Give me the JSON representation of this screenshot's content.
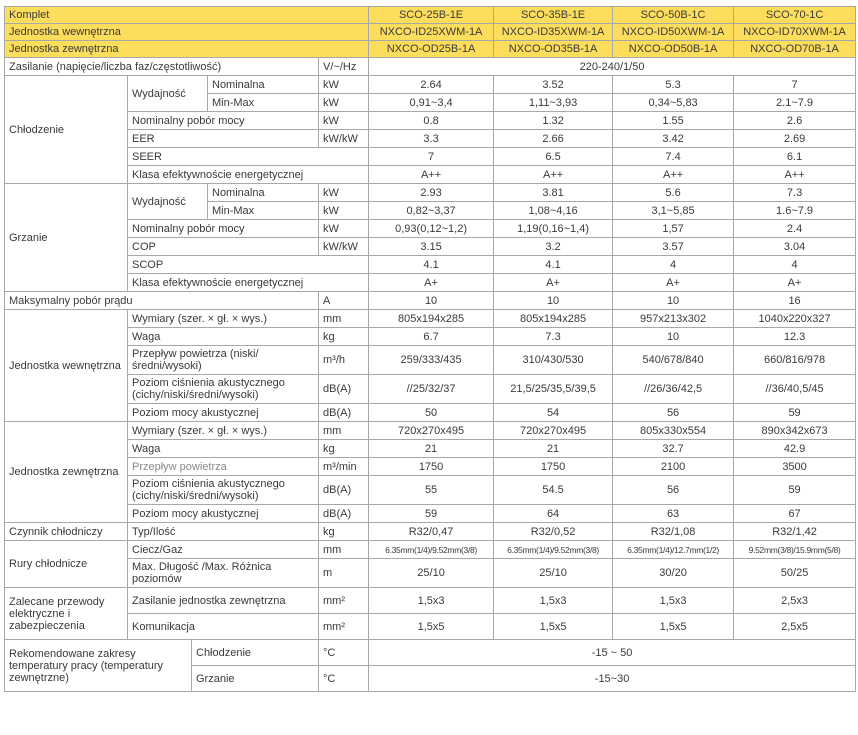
{
  "header": [
    {
      "label": "Komplet",
      "values": [
        "SCO-25B-1E",
        "SCO-35B-1E",
        "SCO-50B-1C",
        "SCO-70-1C"
      ]
    },
    {
      "label": "Jednostka wewnętrzna",
      "values": [
        "NXCO-ID25XWM-1A",
        "NXCO-ID35XWM-1A",
        "NXCO-ID50XWM-1A",
        "NXCO-ID70XWM-1A"
      ]
    },
    {
      "label": "Jednostka zewnętrzna",
      "values": [
        "NXCO-OD25B-1A",
        "NXCO-OD35B-1A",
        "NXCO-OD50B-1A",
        "NXCO-OD70B-1A"
      ]
    }
  ],
  "sections": [
    {
      "label": null,
      "rows": [
        {
          "label": "Zasilanie (napięcie/liczba faz/częstotliwość)",
          "unit": "V/~/Hz",
          "value": "220-240/1/50"
        }
      ]
    },
    {
      "label": "Chłodzenie",
      "rows": [
        {
          "group": "Wydajność",
          "label": "Nominalna",
          "unit": "kW",
          "values": [
            "2.64",
            "3.52",
            "5.3",
            "7"
          ]
        },
        {
          "group": "Wydajność",
          "label": "Min-Max",
          "unit": "kW",
          "values": [
            "0,91~3,4",
            "1,11~3,93",
            "0,34~5,83",
            "2.1~7.9"
          ]
        },
        {
          "label": "Nominalny pobór mocy",
          "unit": "kW",
          "values": [
            "0.8",
            "1.32",
            "1.55",
            "2.6"
          ]
        },
        {
          "label": "EER",
          "unit": "kW/kW",
          "values": [
            "3.3",
            "2.66",
            "3.42",
            "2.69"
          ]
        },
        {
          "label": "SEER",
          "unit": null,
          "values": [
            "7",
            "6.5",
            "7.4",
            "6.1"
          ]
        },
        {
          "label": "Klasa efektywnoście energetycznej",
          "unit": null,
          "values": [
            "A++",
            "A++",
            "A++",
            "A++"
          ]
        }
      ]
    },
    {
      "label": "Grzanie",
      "rows": [
        {
          "group": "Wydajność",
          "label": "Nominalna",
          "unit": "kW",
          "values": [
            "2.93",
            "3.81",
            "5.6",
            "7.3"
          ]
        },
        {
          "group": "Wydajność",
          "label": "Min-Max",
          "unit": "kW",
          "values": [
            "0,82~3,37",
            "1,08~4,16",
            "3,1~5,85",
            "1.6~7.9"
          ]
        },
        {
          "label": "Nominalny pobór mocy",
          "unit": "kW",
          "values": [
            "0,93(0,12~1,2)",
            "1,19(0,16~1,4)",
            "1,57",
            "2.4"
          ]
        },
        {
          "label": "COP",
          "unit": "kW/kW",
          "values": [
            "3.15",
            "3.2",
            "3.57",
            "3.04"
          ]
        },
        {
          "label": "SCOP",
          "unit": null,
          "values": [
            "4.1",
            "4.1",
            "4",
            "4"
          ]
        },
        {
          "label": "Klasa efektywnoście energetycznej",
          "unit": null,
          "values": [
            "A+",
            "A+",
            "A+",
            "A+"
          ]
        }
      ]
    },
    {
      "label": null,
      "rows": [
        {
          "label": "Maksymalny pobór prądu",
          "unit": "A",
          "values": [
            "10",
            "10",
            "10",
            "16"
          ]
        }
      ]
    },
    {
      "label": "Jednostka wewnętrzna",
      "rows": [
        {
          "label": "Wymiary (szer. × gł. × wys.)",
          "unit": "mm",
          "values": [
            "805x194x285",
            "805x194x285",
            "957x213x302",
            "1040x220x327"
          ]
        },
        {
          "label": "Waga",
          "unit": "kg",
          "values": [
            "6.7",
            "7.3",
            "10",
            "12.3"
          ]
        },
        {
          "label": "Przepływ powietrza (niski/średni/wysoki)",
          "unit": "m³/h",
          "values": [
            "259/333/435",
            "310/430/530",
            "540/678/840",
            "660/816/978"
          ],
          "tall": true
        },
        {
          "label": "Poziom ciśnienia akustycznego (cichy/niski/średni/wysoki)",
          "unit": "dB(A)",
          "values": [
            "//25/32/37",
            "21,5/25/35,5/39,5",
            "//26/36/42,5",
            "//36/40,5/45"
          ],
          "tall": true
        },
        {
          "label": "Poziom mocy akustycznej",
          "unit": "dB(A)",
          "values": [
            "50",
            "54",
            "56",
            "59"
          ]
        }
      ]
    },
    {
      "label": "Jednostka zewnętrzna",
      "rows": [
        {
          "label": "Wymiary (szer. × gł. × wys.)",
          "unit": "mm",
          "values": [
            "720x270x495",
            "720x270x495",
            "805x330x554",
            "890x342x673"
          ]
        },
        {
          "label": "Waga",
          "unit": "kg",
          "values": [
            "21",
            "21",
            "32.7",
            "42.9"
          ]
        },
        {
          "label": "Przepływ powietrza",
          "unit": "m³/min",
          "values": [
            "1750",
            "1750",
            "2100",
            "3500"
          ],
          "light": true
        },
        {
          "label": "Poziom ciśnienia akustycznego (cichy/niski/średni/wysoki)",
          "unit": "dB(A)",
          "values": [
            "55",
            "54.5",
            "56",
            "59"
          ],
          "tall": true
        },
        {
          "label": "Poziom mocy akustycznej",
          "unit": "dB(A)",
          "values": [
            "59",
            "64",
            "63",
            "67"
          ]
        }
      ]
    },
    {
      "label": "Czynnik chłodniczy",
      "rows": [
        {
          "label": "Typ/Ilość",
          "unit": "kg",
          "values": [
            "R32/0,47",
            "R32/0,52",
            "R32/1,08",
            "R32/1,42"
          ]
        }
      ]
    },
    {
      "label": "Rury chłodnicze",
      "rows": [
        {
          "label": "Ciecz/Gaz",
          "unit": "mm",
          "values": [
            "6.35mm(1/4)/9.52mm(3/8)",
            "6.35mm(1/4)/9.52mm(3/8)",
            "6.35mm(1/4)/12.7mm(1/2)",
            "9.52mm(3/8)/15.9mm(5/8)"
          ],
          "small": true
        },
        {
          "label": "Max. Długość /Max. Różnica poziomów",
          "unit": "m",
          "values": [
            "25/10",
            "25/10",
            "30/20",
            "50/25"
          ],
          "tall": true
        }
      ]
    },
    {
      "label": "Zalecane przewody elektryczne i zabezpieczenia",
      "rows": [
        {
          "label": "Zasilanie jednostka zewnętrzna",
          "unit": "mm²",
          "values": [
            "1,5x3",
            "1,5x3",
            "1,5x3",
            "2,5x3"
          ],
          "mid": true
        },
        {
          "label": "Komunikacja",
          "unit": "mm²",
          "values": [
            "1,5x5",
            "1,5x5",
            "1,5x5",
            "2,5x5"
          ],
          "mid": true
        }
      ]
    },
    {
      "label": "Rekomendowane zakresy temperatury pracy (temperatury zewnętrzne)",
      "wide": true,
      "rows": [
        {
          "label": "Chłodzenie",
          "unit": "°C",
          "value": "-15 ~ 50",
          "mid": true
        },
        {
          "label": "Grzanie",
          "unit": "°C",
          "value": "-15~30",
          "mid": true
        }
      ]
    }
  ]
}
